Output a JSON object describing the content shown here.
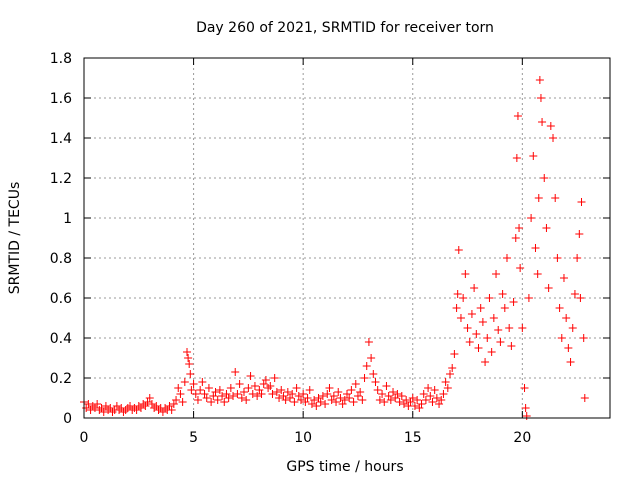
{
  "chart_data": {
    "type": "scatter",
    "title": "Day 260 of 2021, SRMTID for receiver torn",
    "xlabel": "GPS time / hours",
    "ylabel": "SRMTID / TECUs",
    "xlim": [
      0,
      24
    ],
    "ylim": [
      0,
      1.8
    ],
    "xticks": [
      0,
      5,
      10,
      15,
      20
    ],
    "xtick_labels": [
      "0",
      "5",
      "10",
      "15",
      "20"
    ],
    "yticks": [
      0,
      0.2,
      0.4,
      0.6,
      0.8,
      1.0,
      1.2,
      1.4,
      1.6,
      1.8
    ],
    "ytick_labels": [
      "0",
      "0.2",
      "0.4",
      "0.6",
      "0.8",
      "1",
      "1.2",
      "1.4",
      "1.6",
      "1.8"
    ],
    "grid": true,
    "marker": "+",
    "color": "#ff0000",
    "series": [
      {
        "name": "SRMTID",
        "points": [
          [
            0.0,
            0.08
          ],
          [
            0.1,
            0.05
          ],
          [
            0.2,
            0.07
          ],
          [
            0.3,
            0.04
          ],
          [
            0.4,
            0.06
          ],
          [
            0.5,
            0.05
          ],
          [
            0.6,
            0.07
          ],
          [
            0.7,
            0.04
          ],
          [
            0.8,
            0.05
          ],
          [
            0.9,
            0.03
          ],
          [
            1.0,
            0.06
          ],
          [
            1.1,
            0.04
          ],
          [
            1.2,
            0.05
          ],
          [
            1.3,
            0.03
          ],
          [
            1.4,
            0.04
          ],
          [
            1.5,
            0.06
          ],
          [
            1.6,
            0.04
          ],
          [
            1.7,
            0.05
          ],
          [
            1.8,
            0.03
          ],
          [
            1.9,
            0.04
          ],
          [
            2.0,
            0.05
          ],
          [
            2.1,
            0.06
          ],
          [
            2.2,
            0.04
          ],
          [
            2.3,
            0.05
          ],
          [
            2.4,
            0.04
          ],
          [
            2.5,
            0.06
          ],
          [
            2.6,
            0.05
          ],
          [
            2.7,
            0.07
          ],
          [
            2.8,
            0.06
          ],
          [
            2.9,
            0.08
          ],
          [
            3.0,
            0.1
          ],
          [
            3.1,
            0.07
          ],
          [
            3.2,
            0.05
          ],
          [
            3.3,
            0.06
          ],
          [
            3.4,
            0.04
          ],
          [
            3.5,
            0.05
          ],
          [
            3.6,
            0.03
          ],
          [
            3.7,
            0.05
          ],
          [
            3.8,
            0.04
          ],
          [
            3.9,
            0.06
          ],
          [
            4.0,
            0.04
          ],
          [
            4.1,
            0.07
          ],
          [
            4.2,
            0.09
          ],
          [
            4.3,
            0.15
          ],
          [
            4.4,
            0.12
          ],
          [
            4.5,
            0.08
          ],
          [
            4.6,
            0.18
          ],
          [
            4.7,
            0.33
          ],
          [
            4.75,
            0.3
          ],
          [
            4.8,
            0.27
          ],
          [
            4.85,
            0.22
          ],
          [
            4.9,
            0.14
          ],
          [
            5.0,
            0.17
          ],
          [
            5.1,
            0.12
          ],
          [
            5.2,
            0.09
          ],
          [
            5.3,
            0.14
          ],
          [
            5.4,
            0.18
          ],
          [
            5.5,
            0.12
          ],
          [
            5.6,
            0.1
          ],
          [
            5.7,
            0.15
          ],
          [
            5.8,
            0.08
          ],
          [
            5.9,
            0.11
          ],
          [
            6.0,
            0.13
          ],
          [
            6.1,
            0.09
          ],
          [
            6.2,
            0.14
          ],
          [
            6.3,
            0.11
          ],
          [
            6.4,
            0.08
          ],
          [
            6.5,
            0.12
          ],
          [
            6.6,
            0.1
          ],
          [
            6.7,
            0.15
          ],
          [
            6.8,
            0.11
          ],
          [
            6.9,
            0.23
          ],
          [
            7.0,
            0.12
          ],
          [
            7.1,
            0.17
          ],
          [
            7.2,
            0.1
          ],
          [
            7.3,
            0.13
          ],
          [
            7.4,
            0.09
          ],
          [
            7.5,
            0.15
          ],
          [
            7.6,
            0.21
          ],
          [
            7.7,
            0.12
          ],
          [
            7.8,
            0.16
          ],
          [
            7.9,
            0.11
          ],
          [
            8.0,
            0.14
          ],
          [
            8.1,
            0.12
          ],
          [
            8.2,
            0.17
          ],
          [
            8.3,
            0.19
          ],
          [
            8.4,
            0.15
          ],
          [
            8.5,
            0.16
          ],
          [
            8.6,
            0.12
          ],
          [
            8.7,
            0.2
          ],
          [
            8.8,
            0.13
          ],
          [
            8.9,
            0.1
          ],
          [
            9.0,
            0.14
          ],
          [
            9.1,
            0.11
          ],
          [
            9.2,
            0.09
          ],
          [
            9.3,
            0.13
          ],
          [
            9.4,
            0.1
          ],
          [
            9.5,
            0.12
          ],
          [
            9.6,
            0.08
          ],
          [
            9.7,
            0.15
          ],
          [
            9.8,
            0.11
          ],
          [
            9.9,
            0.09
          ],
          [
            10.0,
            0.12
          ],
          [
            10.1,
            0.08
          ],
          [
            10.2,
            0.1
          ],
          [
            10.3,
            0.14
          ],
          [
            10.4,
            0.07
          ],
          [
            10.5,
            0.09
          ],
          [
            10.6,
            0.06
          ],
          [
            10.7,
            0.1
          ],
          [
            10.8,
            0.08
          ],
          [
            10.9,
            0.11
          ],
          [
            11.0,
            0.07
          ],
          [
            11.1,
            0.12
          ],
          [
            11.2,
            0.15
          ],
          [
            11.3,
            0.09
          ],
          [
            11.4,
            0.11
          ],
          [
            11.5,
            0.08
          ],
          [
            11.6,
            0.13
          ],
          [
            11.7,
            0.1
          ],
          [
            11.8,
            0.07
          ],
          [
            11.9,
            0.09
          ],
          [
            12.0,
            0.12
          ],
          [
            12.1,
            0.1
          ],
          [
            12.2,
            0.14
          ],
          [
            12.3,
            0.08
          ],
          [
            12.4,
            0.17
          ],
          [
            12.5,
            0.11
          ],
          [
            12.6,
            0.13
          ],
          [
            12.7,
            0.09
          ],
          [
            12.8,
            0.2
          ],
          [
            12.9,
            0.26
          ],
          [
            13.0,
            0.38
          ],
          [
            13.1,
            0.3
          ],
          [
            13.2,
            0.22
          ],
          [
            13.3,
            0.18
          ],
          [
            13.4,
            0.14
          ],
          [
            13.5,
            0.09
          ],
          [
            13.6,
            0.12
          ],
          [
            13.7,
            0.08
          ],
          [
            13.8,
            0.16
          ],
          [
            13.9,
            0.11
          ],
          [
            14.0,
            0.09
          ],
          [
            14.1,
            0.13
          ],
          [
            14.2,
            0.1
          ],
          [
            14.3,
            0.12
          ],
          [
            14.4,
            0.08
          ],
          [
            14.5,
            0.11
          ],
          [
            14.6,
            0.07
          ],
          [
            14.7,
            0.09
          ],
          [
            14.8,
            0.06
          ],
          [
            14.9,
            0.08
          ],
          [
            15.0,
            0.1
          ],
          [
            15.1,
            0.06
          ],
          [
            15.2,
            0.09
          ],
          [
            15.3,
            0.05
          ],
          [
            15.4,
            0.07
          ],
          [
            15.5,
            0.12
          ],
          [
            15.6,
            0.09
          ],
          [
            15.7,
            0.15
          ],
          [
            15.8,
            0.11
          ],
          [
            15.9,
            0.08
          ],
          [
            16.0,
            0.14
          ],
          [
            16.1,
            0.1
          ],
          [
            16.2,
            0.07
          ],
          [
            16.3,
            0.09
          ],
          [
            16.4,
            0.12
          ],
          [
            16.5,
            0.18
          ],
          [
            16.6,
            0.15
          ],
          [
            16.7,
            0.22
          ],
          [
            16.8,
            0.25
          ],
          [
            16.9,
            0.32
          ],
          [
            17.0,
            0.55
          ],
          [
            17.05,
            0.62
          ],
          [
            17.1,
            0.84
          ],
          [
            17.2,
            0.5
          ],
          [
            17.3,
            0.6
          ],
          [
            17.4,
            0.72
          ],
          [
            17.5,
            0.45
          ],
          [
            17.6,
            0.38
          ],
          [
            17.7,
            0.52
          ],
          [
            17.8,
            0.65
          ],
          [
            17.9,
            0.42
          ],
          [
            18.0,
            0.35
          ],
          [
            18.1,
            0.55
          ],
          [
            18.2,
            0.48
          ],
          [
            18.3,
            0.28
          ],
          [
            18.4,
            0.4
          ],
          [
            18.5,
            0.6
          ],
          [
            18.6,
            0.33
          ],
          [
            18.7,
            0.5
          ],
          [
            18.8,
            0.72
          ],
          [
            18.9,
            0.44
          ],
          [
            19.0,
            0.38
          ],
          [
            19.1,
            0.62
          ],
          [
            19.2,
            0.55
          ],
          [
            19.3,
            0.8
          ],
          [
            19.4,
            0.45
          ],
          [
            19.5,
            0.36
          ],
          [
            19.6,
            0.58
          ],
          [
            19.7,
            0.9
          ],
          [
            19.75,
            1.3
          ],
          [
            19.8,
            1.51
          ],
          [
            19.85,
            0.95
          ],
          [
            19.9,
            0.75
          ],
          [
            20.0,
            0.45
          ],
          [
            20.1,
            0.15
          ],
          [
            20.15,
            0.05
          ],
          [
            20.2,
            0.01
          ],
          [
            20.3,
            0.6
          ],
          [
            20.4,
            1.0
          ],
          [
            20.5,
            1.31
          ],
          [
            20.6,
            0.85
          ],
          [
            20.7,
            0.72
          ],
          [
            20.75,
            1.1
          ],
          [
            20.8,
            1.69
          ],
          [
            20.85,
            1.6
          ],
          [
            20.9,
            1.48
          ],
          [
            21.0,
            1.2
          ],
          [
            21.1,
            0.95
          ],
          [
            21.2,
            0.65
          ],
          [
            21.3,
            1.46
          ],
          [
            21.4,
            1.4
          ],
          [
            21.5,
            1.1
          ],
          [
            21.6,
            0.8
          ],
          [
            21.7,
            0.55
          ],
          [
            21.8,
            0.4
          ],
          [
            21.9,
            0.7
          ],
          [
            22.0,
            0.5
          ],
          [
            22.1,
            0.35
          ],
          [
            22.2,
            0.28
          ],
          [
            22.3,
            0.45
          ],
          [
            22.4,
            0.62
          ],
          [
            22.5,
            0.8
          ],
          [
            22.6,
            0.92
          ],
          [
            22.65,
            0.6
          ],
          [
            22.7,
            1.08
          ],
          [
            22.8,
            0.4
          ],
          [
            22.85,
            0.1
          ]
        ]
      }
    ]
  }
}
